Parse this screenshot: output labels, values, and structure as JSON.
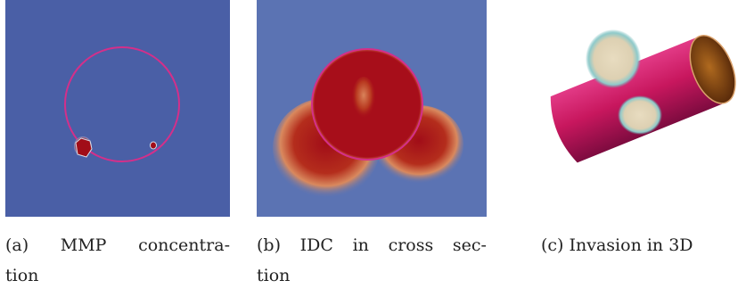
{
  "figures": [
    {
      "id": "a",
      "caption_lines": [
        "(a) MMP concentra-",
        "tion"
      ],
      "caption_words": [
        "(a)",
        "MMP",
        "concentra-"
      ],
      "colors": {
        "background": "#4a5fa6",
        "circle": "#d42f8a",
        "spot": "#a10d18"
      }
    },
    {
      "id": "b",
      "caption_lines": [
        "(b) IDC in cross sec-",
        "tion"
      ],
      "caption_words": [
        "(b)",
        "IDC",
        "in",
        "cross",
        "sec-"
      ],
      "colors": {
        "background": "#5b73b3",
        "disk": "#a70e1a",
        "glow": "#e8c7a6",
        "circle": "#d42f8a"
      }
    },
    {
      "id": "c",
      "caption_lines": [
        "(c) Invasion in 3D"
      ],
      "colors": {
        "cylinder": "#c8175e",
        "cylinder_end": "#7b3a0e",
        "blob": "#e8dcc0",
        "blob_rim": "#5fb3b3"
      }
    }
  ]
}
